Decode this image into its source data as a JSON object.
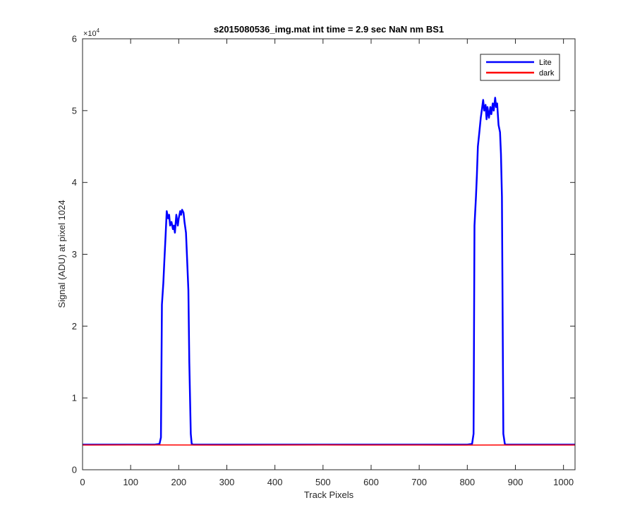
{
  "chart_data": {
    "type": "line",
    "title": "s2015080536_img.mat int time = 2.9 sec  NaN nm BS1",
    "xlabel": "Track Pixels",
    "ylabel": "Signal (ADU) at pixel 1024",
    "xlim": [
      0,
      1024
    ],
    "ylim": [
      0,
      60000
    ],
    "y_exponent_label": "×10",
    "y_exponent_power": "4",
    "x_ticks": [
      0,
      100,
      200,
      300,
      400,
      500,
      600,
      700,
      800,
      900,
      1000
    ],
    "x_tick_labels": [
      "0",
      "100",
      "200",
      "300",
      "400",
      "500",
      "600",
      "700",
      "800",
      "900",
      "1000"
    ],
    "y_ticks": [
      0,
      10000,
      20000,
      30000,
      40000,
      50000,
      60000
    ],
    "y_tick_labels": [
      "0",
      "1",
      "2",
      "3",
      "4",
      "5",
      "6"
    ],
    "grid": false,
    "legend_position": "top-right",
    "series": [
      {
        "name": "Lite",
        "color": "#0000ff",
        "x": [
          0,
          150,
          160,
          163,
          165,
          168,
          170,
          173,
          175,
          178,
          180,
          182,
          185,
          188,
          190,
          192,
          195,
          198,
          200,
          203,
          205,
          207,
          210,
          212,
          215,
          217,
          220,
          222,
          225,
          227,
          230,
          240,
          300,
          400,
          500,
          600,
          700,
          800,
          810,
          813,
          815,
          818,
          820,
          822,
          825,
          828,
          830,
          833,
          835,
          838,
          840,
          842,
          845,
          848,
          850,
          853,
          855,
          858,
          860,
          862,
          865,
          868,
          870,
          872,
          875,
          878,
          880,
          900,
          1000,
          1024
        ],
        "y": [
          3500,
          3500,
          3600,
          4500,
          23000,
          26000,
          29000,
          33000,
          36000,
          35000,
          35500,
          34000,
          34500,
          33500,
          34000,
          33000,
          35500,
          34000,
          35000,
          36000,
          35500,
          36200,
          35800,
          34500,
          33000,
          30000,
          25000,
          15000,
          5000,
          3600,
          3500,
          3500,
          3500,
          3500,
          3500,
          3500,
          3500,
          3500,
          3600,
          5000,
          34000,
          38000,
          41000,
          45000,
          47000,
          49000,
          50000,
          51500,
          50000,
          50800,
          48800,
          50500,
          49000,
          50500,
          49500,
          51000,
          50000,
          51800,
          50500,
          51000,
          48000,
          47000,
          44000,
          38000,
          5000,
          3600,
          3500,
          3500,
          3500,
          3500
        ]
      },
      {
        "name": "dark",
        "color": "#ff0000",
        "x": [
          0,
          100,
          200,
          300,
          400,
          500,
          600,
          700,
          800,
          900,
          1000,
          1024
        ],
        "y": [
          3450,
          3460,
          3450,
          3440,
          3450,
          3460,
          3450,
          3450,
          3440,
          3450,
          3450,
          3450
        ]
      }
    ]
  }
}
